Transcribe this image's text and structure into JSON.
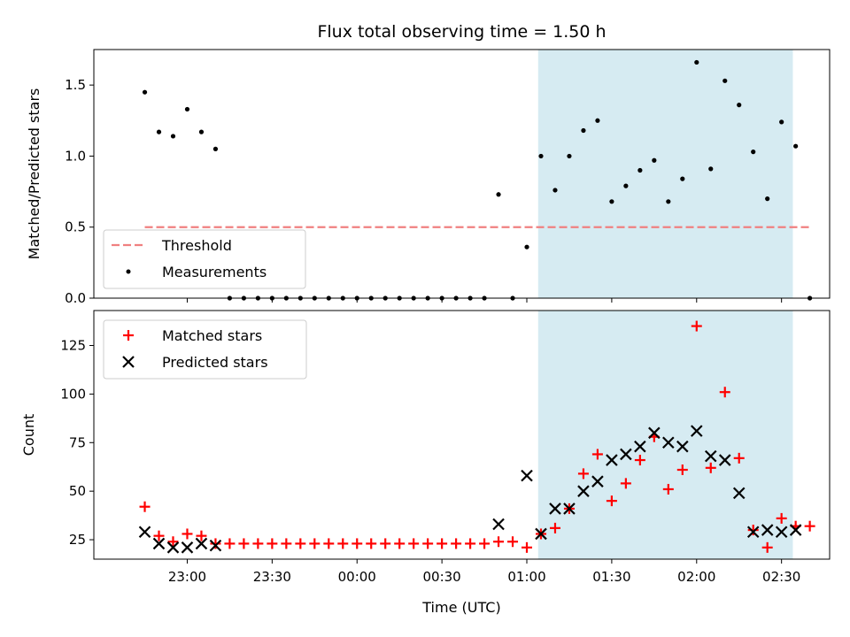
{
  "chart_data": [
    {
      "type": "scatter",
      "title": "Flux total observing time = 1.50 h",
      "xlabel": "",
      "ylabel": "Matched/Predicted stars",
      "ylim": [
        0,
        1.75
      ],
      "yticks": [
        0.0,
        0.5,
        1.0,
        1.5
      ],
      "ytick_labels": [
        "0.0",
        "0.5",
        "1.0",
        "1.5"
      ],
      "shaded_span": {
        "start": "01:04",
        "end": "02:34",
        "color": "#add8e6"
      },
      "legend_placement": "lower-left",
      "threshold": {
        "name": "Threshold",
        "value": 0.5,
        "x_start": "22:45",
        "x_end": "02:40",
        "color": "#f08080"
      },
      "series": [
        {
          "name": "Measurements",
          "marker": "point",
          "color": "#000000",
          "x": [
            "22:45",
            "22:50",
            "22:55",
            "23:00",
            "23:05",
            "23:10",
            "23:15",
            "23:20",
            "23:25",
            "23:30",
            "23:35",
            "23:40",
            "23:45",
            "23:50",
            "23:55",
            "00:00",
            "00:05",
            "00:10",
            "00:15",
            "00:20",
            "00:25",
            "00:30",
            "00:35",
            "00:40",
            "00:45",
            "00:50",
            "00:55",
            "01:00",
            "01:05",
            "01:10",
            "01:15",
            "01:20",
            "01:25",
            "01:30",
            "01:35",
            "01:40",
            "01:45",
            "01:50",
            "01:55",
            "02:00",
            "02:05",
            "02:10",
            "02:15",
            "02:20",
            "02:25",
            "02:30",
            "02:35",
            "02:40"
          ],
          "y": [
            1.45,
            1.17,
            1.14,
            1.33,
            1.17,
            1.05,
            0,
            0,
            0,
            0,
            0,
            0,
            0,
            0,
            0,
            0,
            0,
            0,
            0,
            0,
            0,
            0,
            0,
            0,
            0,
            0.73,
            0,
            0.36,
            1.0,
            0.76,
            1.0,
            1.18,
            1.25,
            0.68,
            0.79,
            0.9,
            0.97,
            0.68,
            0.84,
            1.66,
            0.91,
            1.53,
            1.36,
            1.03,
            0.7,
            1.24,
            1.07,
            0
          ]
        }
      ]
    },
    {
      "type": "scatter",
      "title": "",
      "xlabel": "Time (UTC)",
      "ylabel": "Count",
      "ylim": [
        15,
        143
      ],
      "yticks": [
        25,
        50,
        75,
        100,
        125
      ],
      "ytick_labels": [
        "25",
        "50",
        "75",
        "100",
        "125"
      ],
      "xlim": [
        "22:27",
        "02:47"
      ],
      "xticks": [
        "23:00",
        "23:30",
        "00:00",
        "00:30",
        "01:00",
        "01:30",
        "02:00",
        "02:30"
      ],
      "shaded_span": {
        "start": "01:04",
        "end": "02:34",
        "color": "#add8e6"
      },
      "legend_placement": "upper-left",
      "series": [
        {
          "name": "Matched stars",
          "marker": "plus",
          "color": "#ff0000",
          "x": [
            "22:45",
            "22:50",
            "22:55",
            "23:00",
            "23:05",
            "23:10",
            "23:15",
            "23:20",
            "23:25",
            "23:30",
            "23:35",
            "23:40",
            "23:45",
            "23:50",
            "23:55",
            "00:00",
            "00:05",
            "00:10",
            "00:15",
            "00:20",
            "00:25",
            "00:30",
            "00:35",
            "00:40",
            "00:45",
            "00:50",
            "00:55",
            "01:00",
            "01:05",
            "01:10",
            "01:15",
            "01:20",
            "01:25",
            "01:30",
            "01:35",
            "01:40",
            "01:45",
            "01:50",
            "01:55",
            "02:00",
            "02:05",
            "02:10",
            "02:15",
            "02:20",
            "02:25",
            "02:30",
            "02:35",
            "02:40"
          ],
          "y": [
            42,
            27,
            24,
            28,
            27,
            23,
            23,
            23,
            23,
            23,
            23,
            23,
            23,
            23,
            23,
            23,
            23,
            23,
            23,
            23,
            23,
            23,
            23,
            23,
            23,
            24,
            24,
            21,
            28,
            31,
            41,
            59,
            69,
            45,
            54,
            66,
            78,
            51,
            61,
            135,
            62,
            101,
            67,
            30,
            21,
            36,
            32,
            32
          ]
        },
        {
          "name": "Predicted stars",
          "marker": "x",
          "color": "#000000",
          "x": [
            "22:45",
            "22:50",
            "22:55",
            "23:00",
            "23:05",
            "23:10",
            "00:50",
            "01:00",
            "01:05",
            "01:10",
            "01:15",
            "01:20",
            "01:25",
            "01:30",
            "01:35",
            "01:40",
            "01:45",
            "01:50",
            "01:55",
            "02:00",
            "02:05",
            "02:10",
            "02:15",
            "02:20",
            "02:25",
            "02:30",
            "02:35"
          ],
          "y": [
            29,
            23,
            21,
            21,
            23,
            22,
            33,
            58,
            28,
            41,
            41,
            50,
            55,
            66,
            69,
            73,
            80,
            75,
            73,
            81,
            68,
            66,
            49,
            29,
            30,
            29,
            30
          ]
        }
      ]
    }
  ]
}
